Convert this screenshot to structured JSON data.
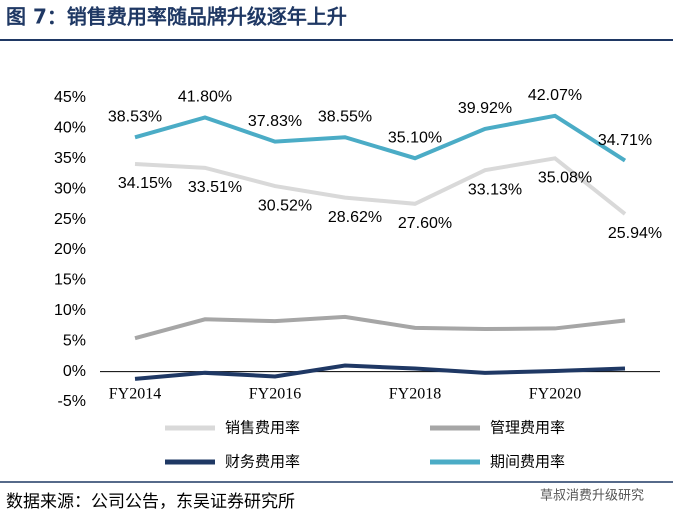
{
  "chart_data": {
    "type": "line",
    "title": "图 7：销售费用率随品牌升级逐年上升",
    "source": "数据来源：公司公告，东吴证券研究所",
    "watermark": "草叔消费升级研究",
    "categories": [
      "FY2014",
      null,
      "FY2016",
      null,
      "FY2018",
      null,
      "FY2020",
      null
    ],
    "ylim": [
      -5,
      45
    ],
    "yticks": [
      {
        "value": -5,
        "label": "-5%"
      },
      {
        "value": 0,
        "label": "0%"
      },
      {
        "value": 5,
        "label": "5%"
      },
      {
        "value": 10,
        "label": "10%"
      },
      {
        "value": 15,
        "label": "15%"
      },
      {
        "value": 20,
        "label": "20%"
      },
      {
        "value": 25,
        "label": "25%"
      },
      {
        "value": 30,
        "label": "30%"
      },
      {
        "value": 35,
        "label": "35%"
      },
      {
        "value": 40,
        "label": "40%"
      },
      {
        "value": 45,
        "label": "45%"
      }
    ],
    "series": [
      {
        "name": "销售费用率",
        "color": "#d9d9d9",
        "values": [
          34.15,
          33.51,
          30.52,
          28.62,
          27.6,
          33.13,
          35.08,
          25.94
        ],
        "value_labels": [
          "34.15%",
          "33.51%",
          "30.52%",
          "28.62%",
          "27.60%",
          "33.13%",
          "35.08%",
          "25.94%"
        ]
      },
      {
        "name": "管理费用率",
        "color": "#a6a6a6",
        "values": [
          5.5,
          8.6,
          8.3,
          9.0,
          7.2,
          7.0,
          7.1,
          8.4
        ]
      },
      {
        "name": "财务费用率",
        "color": "#1f3864",
        "values": [
          -1.2,
          -0.2,
          -0.8,
          1.0,
          0.5,
          -0.2,
          0.1,
          0.5
        ]
      },
      {
        "name": "期间费用率",
        "color": "#4bacc6",
        "values": [
          38.53,
          41.8,
          37.83,
          38.55,
          35.1,
          39.92,
          42.07,
          34.71
        ],
        "value_labels": [
          "38.53%",
          "41.80%",
          "37.83%",
          "38.55%",
          "35.10%",
          "39.92%",
          "42.07%",
          "34.71%"
        ]
      }
    ]
  }
}
